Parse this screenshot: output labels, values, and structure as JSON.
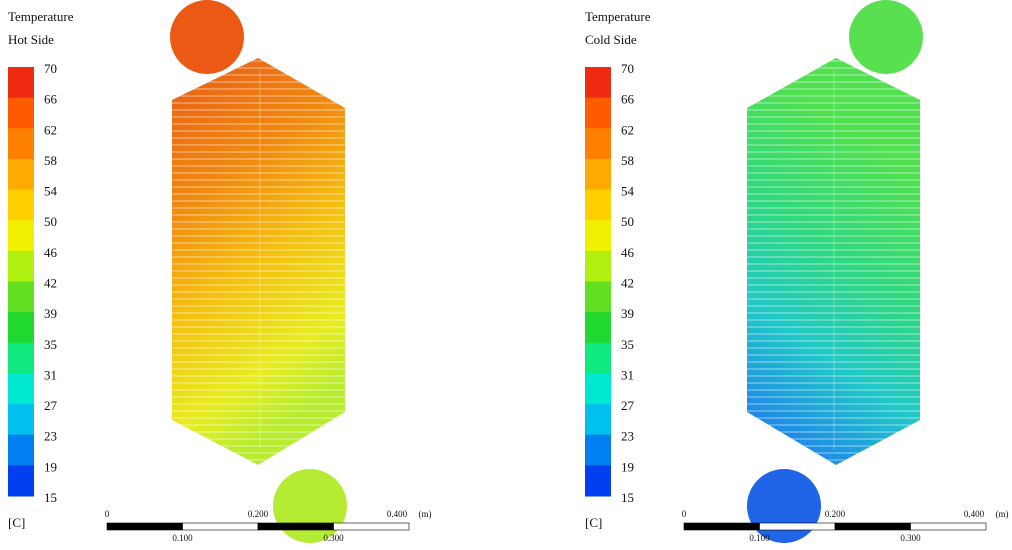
{
  "panels": [
    {
      "title": "Temperature",
      "subtitle": "Hot Side",
      "legend_labels": [
        "70",
        "66",
        "62",
        "58",
        "54",
        "50",
        "46",
        "42",
        "39",
        "35",
        "31",
        "27",
        "23",
        "19",
        "15"
      ],
      "unit": "[C]",
      "scale_top": [
        "0",
        "0.200",
        "0.400",
        "(m)"
      ],
      "scale_bottom": [
        "0.100",
        "0.300"
      ]
    },
    {
      "title": "Temperature",
      "subtitle": "Cold Side",
      "legend_labels": [
        "70",
        "66",
        "62",
        "58",
        "54",
        "50",
        "46",
        "42",
        "39",
        "35",
        "31",
        "27",
        "23",
        "19",
        "15"
      ],
      "unit": "[C]",
      "scale_top": [
        "0",
        "0.200",
        "0.400",
        "(m)"
      ],
      "scale_bottom": [
        "0.100",
        "0.300"
      ]
    }
  ]
}
